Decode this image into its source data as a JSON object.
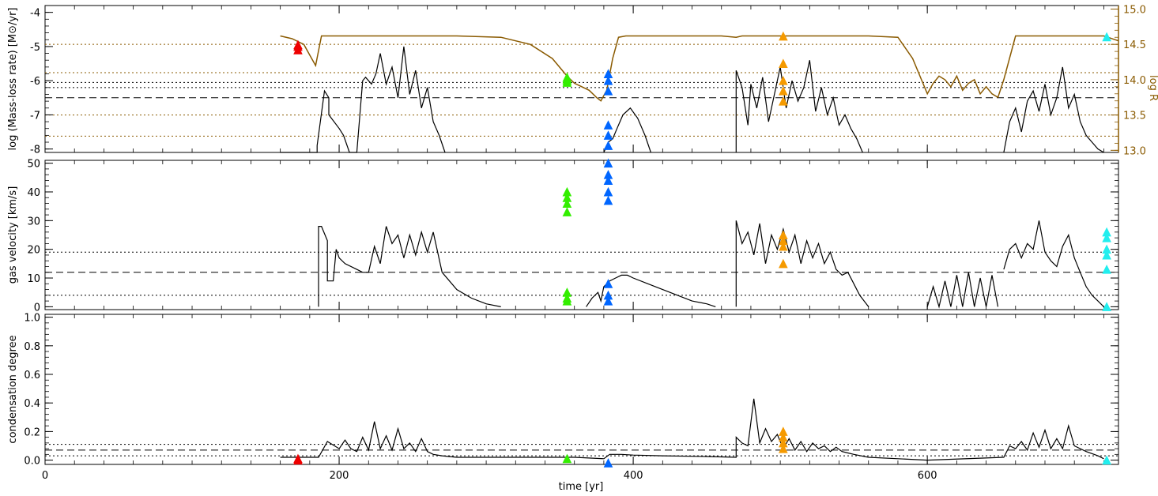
{
  "colors": {
    "black": "#000000",
    "radius": "#8a5a00",
    "red": "#ee0000",
    "green": "#33ee00",
    "blue": "#0066ff",
    "orange": "#f59a00",
    "cyan": "#22eeee"
  },
  "x_axis": {
    "label": "time [yr]",
    "range": [
      0,
      730
    ],
    "ticks": [
      0,
      200,
      400,
      600
    ],
    "tick_labels": [
      "0",
      "200",
      "400",
      "600"
    ]
  },
  "chart_data": [
    {
      "type": "line",
      "ylabel": "log (Mass-loss rate) [M⊙/yr]",
      "ylim": [
        -8.1,
        -3.8
      ],
      "yticks": [
        -8,
        -7,
        -6,
        -5,
        -4
      ],
      "ytick_labels": [
        "-8",
        "-7",
        "-6",
        "-5",
        "-4"
      ],
      "right_axis": {
        "label": "log R",
        "range": [
          12.97,
          15.05
        ],
        "ticks": [
          13.0,
          13.5,
          14.0,
          14.5,
          15.0
        ],
        "tick_labels": [
          "13.0",
          "13.5",
          "14.0",
          "14.5",
          "15.0"
        ]
      },
      "reference_lines": [
        {
          "style": "dashed",
          "y": -6.5
        },
        {
          "style": "dotted",
          "y": -6.05
        },
        {
          "style": "dotted",
          "y": -6.2
        }
      ],
      "right_reference_lines": [
        13.2,
        13.5,
        14.1,
        14.5
      ],
      "series": [
        {
          "role": "mass-loss",
          "x": [
            160,
            185,
            185,
            190,
            193,
            193,
            200,
            203,
            207,
            212,
            216,
            218,
            222,
            225,
            228,
            232,
            236,
            240,
            244,
            248,
            252,
            256,
            260,
            264,
            268,
            272
          ],
          "y": [
            -8.1,
            -8.1,
            -7.9,
            -6.3,
            -6.5,
            -7.0,
            -7.4,
            -7.6,
            -8.1,
            -8.1,
            -6.0,
            -5.9,
            -6.1,
            -5.8,
            -5.2,
            -6.1,
            -5.6,
            -6.5,
            -5.0,
            -6.4,
            -5.7,
            -6.8,
            -6.2,
            -7.2,
            -7.6,
            -8.1
          ]
        },
        {
          "role": "mass-loss",
          "x": [
            380,
            383,
            386,
            389,
            393,
            398,
            403,
            408,
            412
          ],
          "y": [
            -8.1,
            -7.8,
            -7.7,
            -7.4,
            -7.0,
            -6.8,
            -7.1,
            -7.6,
            -8.1
          ]
        },
        {
          "role": "mass-loss",
          "x": [
            470,
            470,
            474,
            478,
            480,
            484,
            488,
            492,
            496,
            500,
            504,
            508,
            512,
            516,
            520,
            524,
            528,
            532,
            536,
            540,
            544,
            548,
            552,
            556
          ],
          "y": [
            -8.1,
            -5.7,
            -6.2,
            -7.3,
            -6.1,
            -6.8,
            -5.9,
            -7.2,
            -6.4,
            -5.6,
            -6.8,
            -6.0,
            -6.6,
            -6.2,
            -5.4,
            -6.9,
            -6.2,
            -7.0,
            -6.5,
            -7.3,
            -7.0,
            -7.4,
            -7.7,
            -8.1
          ]
        },
        {
          "role": "mass-loss",
          "x": [
            652,
            656,
            660,
            664,
            668,
            672,
            676,
            680,
            684,
            688,
            692,
            696,
            700,
            704,
            708,
            712,
            716,
            720
          ],
          "y": [
            -8.1,
            -7.2,
            -6.8,
            -7.5,
            -6.6,
            -6.3,
            -6.9,
            -6.1,
            -7.0,
            -6.5,
            -5.6,
            -6.8,
            -6.4,
            -7.2,
            -7.6,
            -7.8,
            -8.0,
            -8.1
          ]
        }
      ],
      "radius_series": {
        "x": [
          160,
          168,
          176,
          180,
          184,
          188,
          196,
          210,
          240,
          280,
          310,
          330,
          345,
          355,
          360,
          365,
          370,
          375,
          378,
          382,
          386,
          390,
          395,
          400,
          430,
          460,
          470,
          474,
          490,
          520,
          560,
          580,
          590,
          600,
          604,
          608,
          612,
          616,
          620,
          624,
          628,
          632,
          636,
          640,
          644,
          648,
          652,
          660,
          680,
          700,
          720,
          730
        ],
        "y": [
          14.62,
          14.58,
          14.5,
          14.35,
          14.2,
          14.62,
          14.62,
          14.62,
          14.62,
          14.62,
          14.6,
          14.5,
          14.3,
          14.05,
          13.95,
          13.9,
          13.85,
          13.75,
          13.7,
          13.85,
          14.3,
          14.6,
          14.62,
          14.62,
          14.62,
          14.62,
          14.6,
          14.62,
          14.62,
          14.62,
          14.62,
          14.6,
          14.3,
          13.8,
          13.95,
          14.05,
          14.0,
          13.9,
          14.05,
          13.85,
          13.95,
          14.0,
          13.8,
          13.9,
          13.8,
          13.75,
          14.0,
          14.62,
          14.62,
          14.62,
          14.62,
          14.55
        ]
      },
      "markers": [
        {
          "color": "red",
          "x": 172,
          "y": [
            -5.0,
            -5.1,
            -4.95
          ]
        },
        {
          "color": "green",
          "x": 355,
          "y": [
            -5.9,
            -6.0,
            -5.95,
            -6.05
          ]
        },
        {
          "color": "blue",
          "x": 383,
          "y": [
            -6.3,
            -6.0,
            -5.8,
            -7.3,
            -7.6,
            -7.9
          ]
        },
        {
          "color": "orange",
          "x": 502,
          "y": [
            -4.7,
            -5.5,
            -6.0,
            -6.3,
            -6.6
          ]
        },
        {
          "color": "cyan",
          "x": 722,
          "y": [
            -4.72
          ]
        }
      ]
    },
    {
      "type": "line",
      "ylabel": "gas velocity [km/s]",
      "ylim": [
        -1,
        51
      ],
      "yticks": [
        0,
        10,
        20,
        30,
        40,
        50
      ],
      "ytick_labels": [
        "0",
        "10",
        "20",
        "30",
        "40",
        "50"
      ],
      "reference_lines": [
        {
          "style": "dashed",
          "y": 12
        },
        {
          "style": "dotted",
          "y": 19
        },
        {
          "style": "dotted",
          "y": 4
        }
      ],
      "series": [
        {
          "role": "velocity",
          "x": [
            186,
            186,
            188,
            192,
            192,
            196,
            198,
            200,
            204,
            212,
            216,
            220,
            224,
            228,
            232,
            236,
            240,
            244,
            248,
            252,
            256,
            260,
            264,
            270,
            280,
            290,
            300,
            310
          ],
          "y": [
            0,
            28,
            28,
            23,
            9,
            9,
            20,
            17,
            15,
            13,
            12,
            12,
            21,
            15,
            28,
            22,
            25,
            17,
            25,
            18,
            26,
            19,
            26,
            12,
            6,
            3,
            1,
            0
          ]
        },
        {
          "role": "velocity",
          "x": [
            368,
            372,
            376,
            378,
            380,
            384,
            388,
            392,
            396,
            400,
            410,
            420,
            430,
            440,
            450,
            456
          ],
          "y": [
            0,
            3,
            5,
            2,
            7,
            9,
            10,
            11,
            11,
            10,
            8,
            6,
            4,
            2,
            1,
            0
          ]
        },
        {
          "role": "velocity",
          "x": [
            470,
            470,
            474,
            478,
            482,
            486,
            490,
            494,
            498,
            502,
            506,
            510,
            514,
            518,
            522,
            526,
            530,
            534,
            538,
            542,
            546,
            550,
            554,
            560
          ],
          "y": [
            0,
            30,
            22,
            26,
            18,
            29,
            15,
            25,
            20,
            27,
            19,
            25,
            15,
            23,
            17,
            22,
            15,
            19,
            13,
            11,
            12,
            8,
            4,
            0
          ]
        },
        {
          "role": "velocity",
          "x": [
            600,
            604,
            608,
            612,
            616,
            620,
            624,
            628,
            632,
            636,
            640,
            644,
            648
          ],
          "y": [
            0,
            7,
            0,
            9,
            0,
            11,
            0,
            12,
            0,
            10,
            0,
            11,
            0
          ]
        },
        {
          "role": "velocity",
          "x": [
            652,
            656,
            660,
            664,
            668,
            672,
            676,
            680,
            684,
            688,
            692,
            696,
            700,
            704,
            708,
            712,
            716,
            720
          ],
          "y": [
            13,
            20,
            22,
            17,
            22,
            20,
            30,
            19,
            16,
            14,
            21,
            25,
            17,
            12,
            7,
            4,
            2,
            0
          ]
        }
      ],
      "markers": [
        {
          "color": "green",
          "x": 355,
          "y": [
            40,
            38,
            36,
            33,
            3,
            5,
            2
          ]
        },
        {
          "color": "blue",
          "x": 383,
          "y": [
            50,
            46,
            44,
            40,
            37,
            2,
            8,
            4
          ]
        },
        {
          "color": "orange",
          "x": 502,
          "y": [
            25,
            23,
            21,
            15
          ]
        },
        {
          "color": "cyan",
          "x": 722,
          "y": [
            26,
            24,
            20,
            18,
            13,
            0
          ]
        }
      ]
    },
    {
      "type": "line",
      "ylabel": "condensation degree",
      "ylim": [
        -0.03,
        1.02
      ],
      "yticks": [
        0.0,
        0.2,
        0.4,
        0.6,
        0.8,
        1.0
      ],
      "ytick_labels": [
        "0.0",
        "0.2",
        "0.4",
        "0.6",
        "0.8",
        "1.0"
      ],
      "reference_lines": [
        {
          "style": "dashed",
          "y": 0.07
        },
        {
          "style": "dotted",
          "y": 0.11
        },
        {
          "style": "dotted",
          "y": 0.03
        }
      ],
      "series": [
        {
          "role": "condensation",
          "x": [
            160,
            186,
            192,
            200,
            204,
            208,
            212,
            216,
            220,
            224,
            228,
            232,
            236,
            240,
            244,
            248,
            252,
            256,
            260,
            264,
            270,
            280,
            300,
            330,
            360,
            380,
            384,
            388,
            392,
            400,
            420,
            450,
            470,
            470,
            474,
            478,
            482,
            486,
            490,
            494,
            498,
            502,
            506,
            510,
            514,
            518,
            522,
            526,
            530,
            534,
            538,
            542,
            546,
            550,
            560,
            600,
            652,
            656,
            660,
            664,
            668,
            672,
            676,
            680,
            684,
            688,
            692,
            696,
            700,
            708,
            716,
            720
          ],
          "y": [
            0.02,
            0.02,
            0.13,
            0.08,
            0.14,
            0.08,
            0.06,
            0.16,
            0.07,
            0.27,
            0.08,
            0.17,
            0.07,
            0.22,
            0.08,
            0.12,
            0.06,
            0.15,
            0.06,
            0.04,
            0.03,
            0.02,
            0.02,
            0.02,
            0.02,
            0.01,
            0.04,
            0.04,
            0.04,
            0.035,
            0.03,
            0.025,
            0.02,
            0.16,
            0.12,
            0.1,
            0.43,
            0.12,
            0.22,
            0.13,
            0.18,
            0.08,
            0.15,
            0.07,
            0.13,
            0.06,
            0.12,
            0.08,
            0.1,
            0.06,
            0.09,
            0.06,
            0.05,
            0.04,
            0.02,
            0.0,
            0.02,
            0.1,
            0.08,
            0.13,
            0.07,
            0.19,
            0.09,
            0.21,
            0.08,
            0.15,
            0.08,
            0.24,
            0.1,
            0.06,
            0.03,
            0.01
          ]
        }
      ],
      "markers": [
        {
          "color": "red",
          "x": 172,
          "y": [
            0.0,
            0.01
          ]
        },
        {
          "color": "green",
          "x": 355,
          "y": [
            0.01
          ]
        },
        {
          "color": "blue",
          "x": 383,
          "y": [
            -0.02
          ]
        },
        {
          "color": "orange",
          "x": 502,
          "y": [
            0.2,
            0.16,
            0.12,
            0.08
          ]
        },
        {
          "color": "cyan",
          "x": 722,
          "y": [
            0.0
          ]
        }
      ]
    }
  ]
}
